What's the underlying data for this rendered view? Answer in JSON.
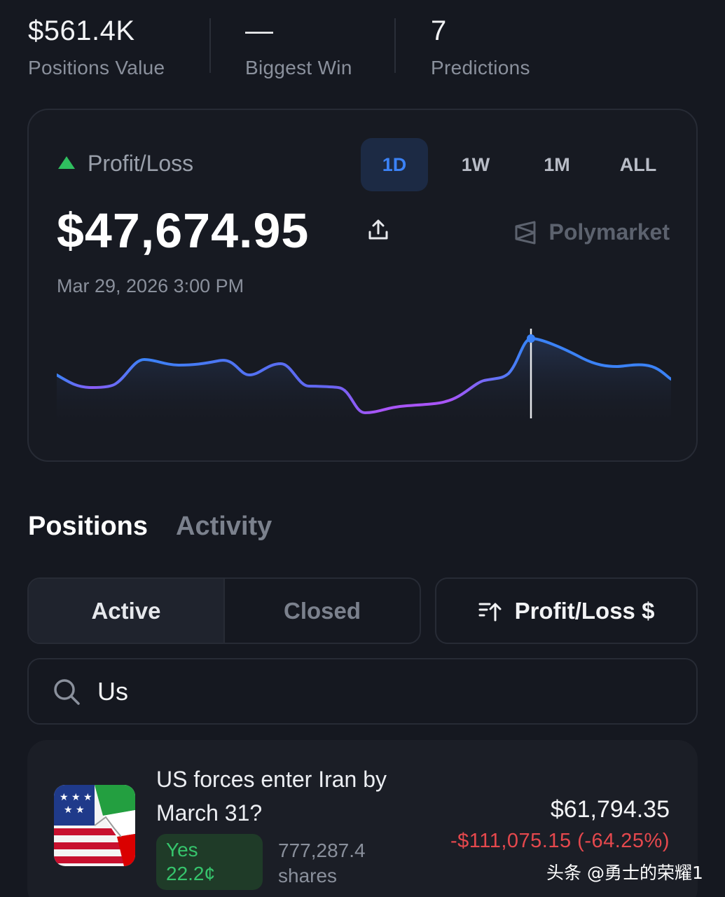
{
  "stats": [
    {
      "value": "$561.4K",
      "label": "Positions Value"
    },
    {
      "value": "—",
      "label": "Biggest Win"
    },
    {
      "value": "7",
      "label": "Predictions"
    }
  ],
  "pnl": {
    "title": "Profit/Loss",
    "ranges": [
      "1D",
      "1W",
      "1M",
      "ALL"
    ],
    "active_range": "1D",
    "amount": "$47,674.95",
    "brand": "Polymarket",
    "date": "Mar 29, 2026 3:00 PM",
    "trend_color": "#2fbf5f"
  },
  "tabs": {
    "positions": "Positions",
    "activity": "Activity"
  },
  "filter": {
    "active": "Active",
    "closed": "Closed",
    "sort": "Profit/Loss $"
  },
  "search": {
    "value": "Us"
  },
  "position": {
    "title": "US forces enter Iran by March 31?",
    "outcome": "Yes",
    "price": "22.2¢",
    "shares_value": "777,287.4",
    "shares_label": "shares",
    "value": "$61,794.35",
    "pnl": "-$111,075.15 (-64.25%)"
  },
  "watermark": "头条 @勇士的荣耀1",
  "colors": {
    "accent": "#3b82f6",
    "positive": "#2fbf5f",
    "negative": "#e5484d",
    "background": "#151820"
  }
}
